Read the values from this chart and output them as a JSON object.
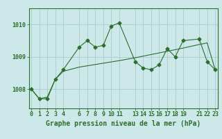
{
  "title": "Graphe pression niveau de la mer (hPa)",
  "background_color": "#cce8e8",
  "grid_color": "#aacccc",
  "line_color": "#2d6e2d",
  "x_ticks": [
    0,
    1,
    2,
    3,
    4,
    6,
    7,
    8,
    9,
    10,
    11,
    13,
    14,
    15,
    16,
    17,
    18,
    19,
    21,
    22,
    23
  ],
  "series1_x": [
    0,
    1,
    2,
    3,
    4,
    6,
    7,
    8,
    9,
    10,
    11,
    13,
    14,
    15,
    16,
    17,
    18,
    19,
    21,
    22,
    23
  ],
  "series1_y": [
    1008.0,
    1007.7,
    1007.7,
    1008.3,
    1008.6,
    1009.3,
    1009.5,
    1009.3,
    1009.35,
    1009.95,
    1010.05,
    1008.85,
    1008.65,
    1008.6,
    1008.75,
    1009.25,
    1009.0,
    1009.5,
    1009.55,
    1008.85,
    1008.6
  ],
  "series2_x": [
    0,
    1,
    2,
    3,
    4,
    6,
    7,
    8,
    9,
    10,
    11,
    13,
    14,
    15,
    16,
    17,
    18,
    19,
    21,
    22,
    23
  ],
  "series2_y": [
    1008.0,
    1007.7,
    1007.75,
    1008.3,
    1008.55,
    1008.68,
    1008.72,
    1008.76,
    1008.8,
    1008.84,
    1008.88,
    1008.97,
    1009.02,
    1009.07,
    1009.12,
    1009.17,
    1009.22,
    1009.27,
    1009.38,
    1009.43,
    1008.6
  ],
  "ylim": [
    1007.4,
    1010.5
  ],
  "yticks": [
    1008,
    1009,
    1010
  ],
  "marker": "D",
  "markersize": 2.5,
  "linewidth": 0.8,
  "title_fontsize": 7,
  "tick_fontsize": 6
}
